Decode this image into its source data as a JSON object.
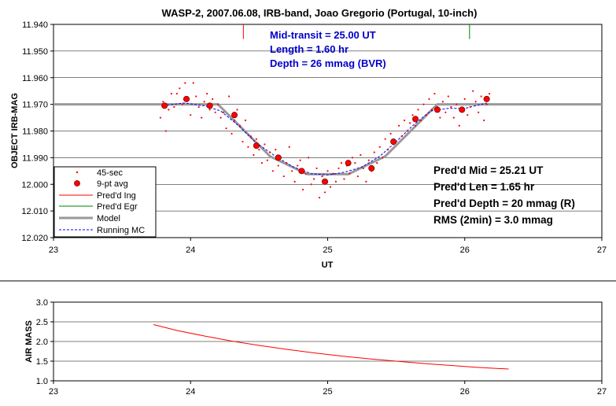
{
  "chart_data": [
    {
      "type": "scatter",
      "title": "WASP-2, 2007.06.08, IRB-band, Joao Gregorio (Portugal, 10-inch)",
      "xlabel": "UT",
      "ylabel": "OBJECT IRB-MAG",
      "xlim": [
        23,
        27
      ],
      "ylim": [
        11.94,
        12.02
      ],
      "y_inverted": true,
      "x_ticks": [
        "23",
        "24",
        "25",
        "26",
        "27"
      ],
      "y_ticks": [
        "11.940",
        "11.950",
        "11.960",
        "11.970",
        "11.980",
        "11.990",
        "12.000",
        "12.010",
        "12.020"
      ],
      "grid": "horizontal",
      "legend": {
        "placement": "bottom-left",
        "entries": [
          "45-sec",
          "9-pt avg",
          "Pred'd Ing",
          "Pred'd Egr",
          "Model",
          "Running MC"
        ]
      },
      "annotations_blue": [
        "Mid-transit = 25.00 UT",
        "Length = 1.60 hr",
        "Depth = 26 mmag (BVR)"
      ],
      "annotations_black": [
        "Pred'd Mid = 25.21 UT",
        "Pred'd Len = 1.65 hr",
        "Pred'd Depth = 20 mmag (R)",
        "RMS (2min) = 3.0 mmag"
      ],
      "series": [
        {
          "name": "45-sec",
          "color": "#ff0000",
          "x": [
            23.78,
            23.8,
            23.82,
            23.84,
            23.86,
            23.88,
            23.9,
            23.92,
            23.94,
            23.96,
            23.98,
            24.0,
            24.02,
            24.04,
            24.06,
            24.08,
            24.1,
            24.12,
            24.14,
            24.16,
            24.18,
            24.2,
            24.22,
            24.24,
            24.26,
            24.28,
            24.3,
            24.32,
            24.34,
            24.36,
            24.38,
            24.4,
            24.42,
            24.44,
            24.46,
            24.48,
            24.5,
            24.52,
            24.54,
            24.56,
            24.58,
            24.6,
            24.62,
            24.64,
            24.66,
            24.68,
            24.7,
            24.72,
            24.74,
            24.76,
            24.78,
            24.8,
            24.82,
            24.84,
            24.86,
            24.88,
            24.9,
            24.92,
            24.94,
            24.96,
            24.98,
            25.0,
            25.02,
            25.04,
            25.06,
            25.08,
            25.1,
            25.12,
            25.14,
            25.16,
            25.18,
            25.2,
            25.22,
            25.24,
            25.26,
            25.28,
            25.3,
            25.32,
            25.34,
            25.36,
            25.38,
            25.4,
            25.42,
            25.44,
            25.46,
            25.48,
            25.5,
            25.52,
            25.54,
            25.56,
            25.58,
            25.6,
            25.62,
            25.64,
            25.66,
            25.68,
            25.7,
            25.72,
            25.74,
            25.76,
            25.78,
            25.8,
            25.82,
            25.84,
            25.86,
            25.88,
            25.9,
            25.92,
            25.94,
            25.96,
            25.98,
            26.0,
            26.02,
            26.04,
            26.06,
            26.08,
            26.1,
            26.12,
            26.14,
            26.16,
            26.18
          ],
          "y": [
            11.975,
            11.969,
            11.98,
            11.972,
            11.966,
            11.971,
            11.966,
            11.964,
            11.97,
            11.962,
            11.968,
            11.974,
            11.962,
            11.967,
            11.971,
            11.975,
            11.969,
            11.966,
            11.972,
            11.968,
            11.973,
            11.97,
            11.975,
            11.973,
            11.979,
            11.967,
            11.981,
            11.976,
            11.972,
            11.978,
            11.984,
            11.976,
            11.986,
            11.982,
            11.989,
            11.983,
            11.987,
            11.992,
            11.985,
            11.991,
            11.988,
            11.995,
            11.987,
            11.993,
            11.99,
            11.997,
            11.992,
            11.986,
            11.995,
            11.999,
            11.993,
            11.991,
            12.002,
            11.996,
            11.99,
            12.0,
            11.998,
            11.994,
            12.005,
            11.997,
            12.003,
            11.995,
            12.001,
            11.996,
            11.999,
            11.994,
            11.992,
            11.998,
            11.993,
            11.996,
            11.99,
            11.992,
            11.997,
            11.989,
            11.994,
            11.999,
            11.991,
            11.995,
            11.988,
            11.992,
            11.986,
            11.99,
            11.983,
            11.987,
            11.981,
            11.985,
            11.984,
            11.978,
            11.982,
            11.976,
            11.98,
            11.977,
            11.974,
            11.978,
            11.972,
            11.976,
            11.97,
            11.974,
            11.968,
            11.972,
            11.966,
            11.971,
            11.975,
            11.969,
            11.973,
            11.967,
            11.971,
            11.975,
            11.97,
            11.978,
            11.972,
            11.968,
            11.974,
            11.971,
            11.965,
            11.969,
            11.973,
            11.967,
            11.976,
            11.97,
            11.966
          ]
        },
        {
          "name": "9-pt avg",
          "color": "#ff0000",
          "x": [
            23.81,
            23.97,
            24.14,
            24.32,
            24.48,
            24.64,
            24.81,
            24.98,
            25.15,
            25.32,
            25.48,
            25.64,
            25.8,
            25.98,
            26.16
          ],
          "y": [
            11.9705,
            11.968,
            11.9705,
            11.974,
            11.9855,
            11.99,
            11.995,
            11.999,
            11.992,
            11.994,
            11.984,
            11.9755,
            11.972,
            11.972,
            11.968
          ]
        },
        {
          "name": "Pred'd Ing",
          "color": "#ff0000",
          "x": [
            24.385,
            24.385
          ],
          "y": [
            11.94,
            11.9455
          ]
        },
        {
          "name": "Pred'd Egr",
          "color": "#008000",
          "x": [
            26.035,
            26.035
          ],
          "y": [
            11.94,
            11.9455
          ]
        },
        {
          "name": "Model",
          "color": "#999999",
          "x": [
            23,
            24.2,
            24.58,
            24.85,
            25.15,
            25.42,
            25.8,
            27
          ],
          "y": [
            11.97,
            11.97,
            11.9895,
            11.9962,
            11.9962,
            11.9895,
            11.97,
            11.97
          ]
        },
        {
          "name": "Running MC",
          "color": "#0000ff",
          "x": [
            23.8,
            23.95,
            24.1,
            24.22,
            24.35,
            24.48,
            24.62,
            24.75,
            24.88,
            25.0,
            25.12,
            25.25,
            25.38,
            25.5,
            25.62,
            25.75,
            25.88,
            26.0,
            26.16
          ],
          "y": [
            11.9705,
            11.9695,
            11.9705,
            11.9725,
            11.978,
            11.9845,
            11.9895,
            11.9935,
            11.996,
            11.9965,
            11.9955,
            11.9935,
            11.9895,
            11.984,
            11.978,
            11.9725,
            11.9715,
            11.9715,
            11.9695
          ]
        }
      ]
    },
    {
      "type": "line",
      "xlabel": "",
      "ylabel": "AIR MASS",
      "xlim": [
        23,
        27
      ],
      "ylim": [
        1.0,
        3.0
      ],
      "x_ticks": [
        "23",
        "24",
        "25",
        "26",
        "27"
      ],
      "y_ticks": [
        "1.0",
        "1.5",
        "2.0",
        "2.5",
        "3.0"
      ],
      "series": [
        {
          "name": "",
          "color": "#ff0000",
          "x": [
            23.73,
            23.9,
            24.1,
            24.3,
            24.5,
            24.7,
            24.9,
            25.1,
            25.3,
            25.5,
            25.7,
            25.9,
            26.1,
            26.32
          ],
          "y": [
            2.43,
            2.28,
            2.14,
            2.01,
            1.9,
            1.8,
            1.71,
            1.63,
            1.56,
            1.5,
            1.44,
            1.39,
            1.34,
            1.3
          ]
        }
      ]
    }
  ]
}
